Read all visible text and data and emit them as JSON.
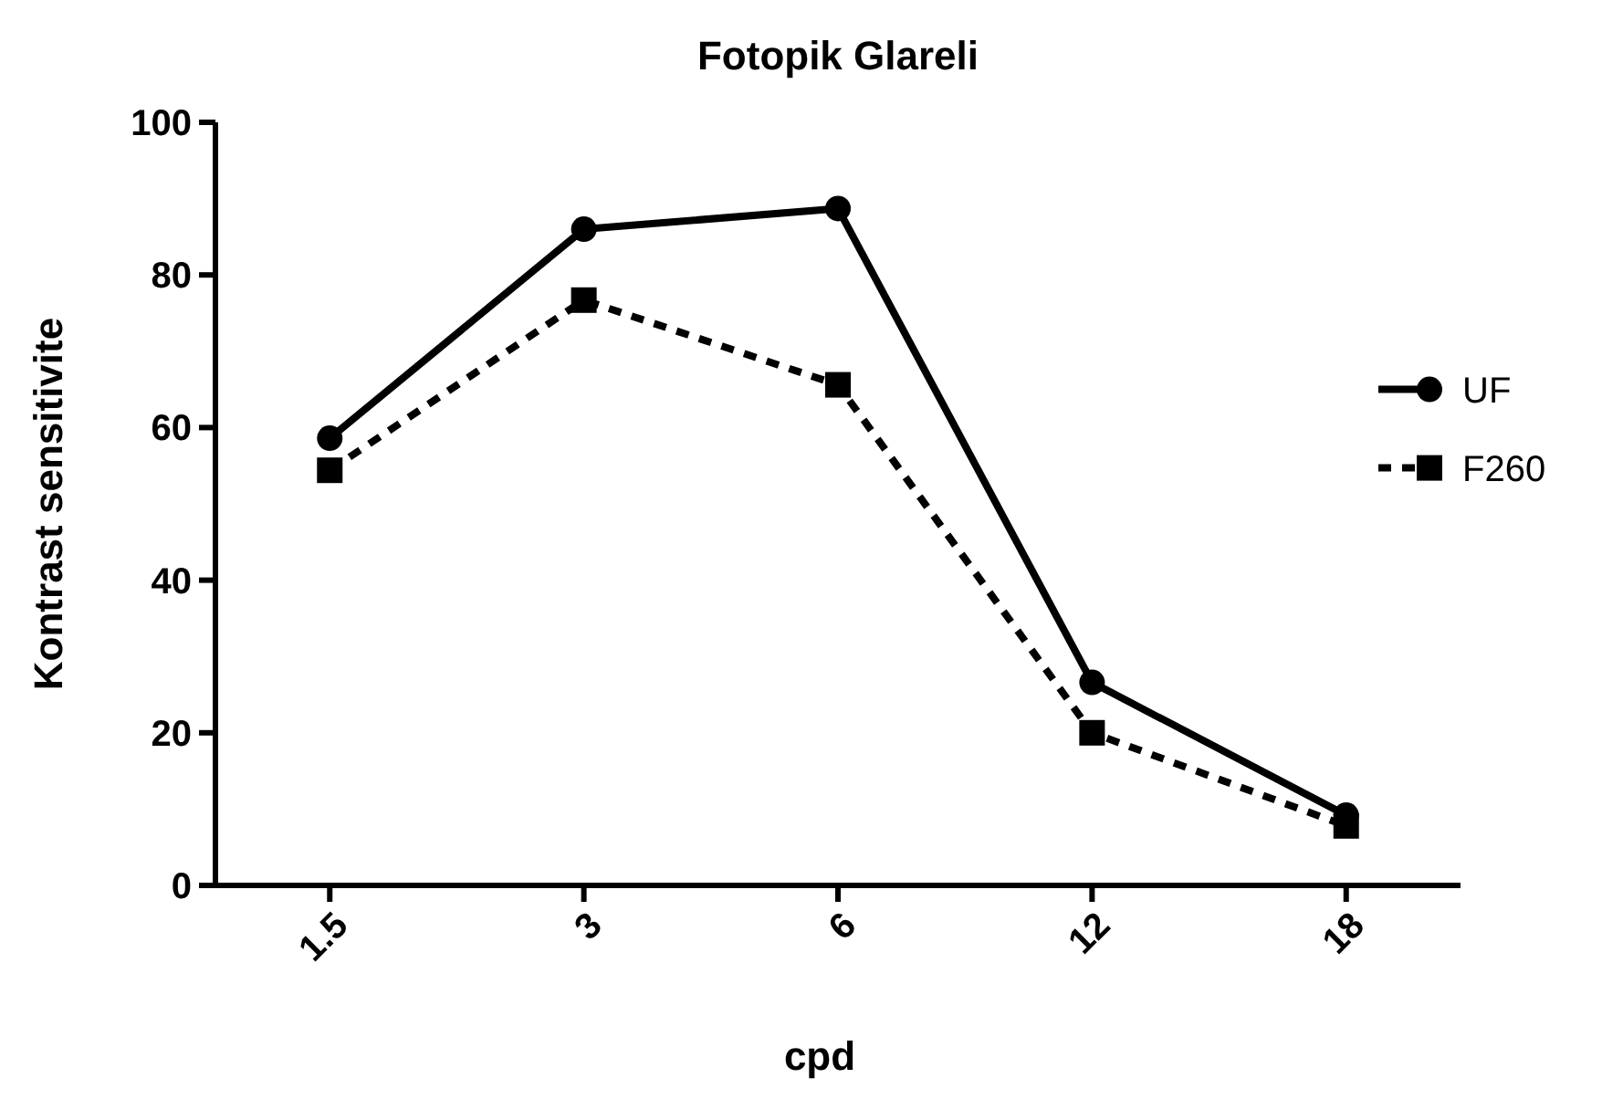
{
  "chart_data": {
    "type": "line",
    "title": "Fotopik Glareli",
    "xlabel": "cpd",
    "ylabel": "Kontrast sensitivite",
    "categories": [
      "1.5",
      "3",
      "6",
      "12",
      "18"
    ],
    "ylim": [
      0,
      100
    ],
    "yticks": [
      0,
      20,
      40,
      60,
      80,
      100
    ],
    "grid": false,
    "legend": "right",
    "series": [
      {
        "name": "UF",
        "color": "#000000",
        "marker": "circle",
        "line_style": "solid",
        "values": [
          58.6,
          86,
          88.7,
          26.6,
          9.2
        ]
      },
      {
        "name": "F260",
        "color": "#000000",
        "marker": "square",
        "line_style": "dashed",
        "values": [
          54.4,
          76.7,
          65.6,
          20,
          7.8
        ]
      }
    ]
  }
}
